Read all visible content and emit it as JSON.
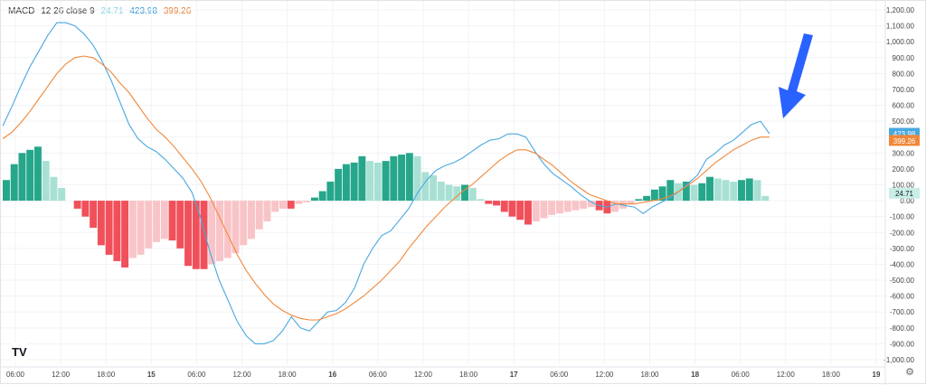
{
  "legend": {
    "label": "MACD",
    "params": "12 26 close 9",
    "hist_value": "24.71",
    "macd_value": "423.98",
    "signal_value": "399.26"
  },
  "badges": {
    "macd": "423.98",
    "signal": "399.26",
    "hist": "24.71"
  },
  "settings_icon": "gear-icon",
  "colors": {
    "macd": "#4aa8e0",
    "signal": "#f0883a",
    "hist_pos_strong": "#26a68a",
    "hist_pos_weak": "#a8e0d4",
    "hist_neg_strong": "#f0505a",
    "hist_neg_weak": "#f8c4c8",
    "arrow": "#2962ff"
  },
  "chart_data": {
    "type": "line",
    "ylim": [
      -1000,
      1200
    ],
    "y_ticks": [
      "1,200.00",
      "1,100.00",
      "1,000.00",
      "900.00",
      "800.00",
      "700.00",
      "600.00",
      "500.00",
      "400.00",
      "300.00",
      "200.00",
      "100.00",
      "0.00",
      "-100.00",
      "-200.00",
      "-300.00",
      "-400.00",
      "-500.00",
      "-600.00",
      "-700.00",
      "-800.00",
      "-900.00",
      "-1,000.00"
    ],
    "x_ticks": [
      "06:00",
      "12:00",
      "18:00",
      "15",
      "06:00",
      "12:00",
      "18:00",
      "16",
      "06:00",
      "12:00",
      "18:00",
      "17",
      "06:00",
      "12:00",
      "18:00",
      "18",
      "06:00",
      "12:00",
      "18:00",
      "19"
    ],
    "series": [
      {
        "values": [
          470,
          590,
          720,
          840,
          940,
          1040,
          1120,
          1120,
          1100,
          1050,
          980,
          880,
          760,
          620,
          480,
          390,
          340,
          310,
          260,
          200,
          140,
          50,
          -120,
          -330,
          -500,
          -630,
          -760,
          -850,
          -900,
          -900,
          -880,
          -820,
          -730,
          -800,
          -820,
          -760,
          -700,
          -690,
          -640,
          -550,
          -400,
          -300,
          -220,
          -190,
          -120,
          -50,
          50,
          130,
          190,
          220,
          240,
          270,
          310,
          350,
          380,
          390,
          420,
          420,
          400,
          310,
          230,
          170,
          130,
          90,
          40,
          0,
          -30,
          -40,
          -20,
          -30,
          -40,
          -80,
          -40,
          -10,
          20,
          60,
          110,
          160,
          260,
          300,
          350,
          380,
          430,
          480,
          500,
          420
        ]
      },
      {
        "values": [
          390,
          430,
          490,
          560,
          640,
          720,
          800,
          860,
          900,
          910,
          900,
          860,
          810,
          740,
          680,
          600,
          520,
          450,
          400,
          340,
          270,
          200,
          120,
          20,
          -100,
          -220,
          -340,
          -440,
          -520,
          -590,
          -650,
          -690,
          -720,
          -740,
          -750,
          -750,
          -730,
          -710,
          -680,
          -640,
          -600,
          -550,
          -500,
          -440,
          -380,
          -300,
          -230,
          -160,
          -100,
          -40,
          10,
          60,
          100,
          150,
          200,
          250,
          290,
          320,
          320,
          300,
          260,
          220,
          170,
          120,
          80,
          40,
          20,
          0,
          -20,
          -20,
          -20,
          -10,
          0,
          10,
          30,
          60,
          100,
          140,
          190,
          240,
          280,
          320,
          350,
          380,
          400,
          400
        ]
      }
    ],
    "histogram": [
      130,
      230,
      300,
      320,
      340,
      250,
      150,
      80,
      0,
      -50,
      -100,
      -170,
      -280,
      -340,
      -380,
      -420,
      -360,
      -340,
      -300,
      -260,
      -240,
      -250,
      -300,
      -410,
      -430,
      -430,
      -400,
      -380,
      -360,
      -330,
      -280,
      -240,
      -180,
      -130,
      -70,
      -50,
      -50,
      -20,
      -10,
      20,
      60,
      120,
      200,
      230,
      240,
      280,
      250,
      240,
      250,
      280,
      290,
      300,
      280,
      180,
      160,
      120,
      100,
      90,
      100,
      80,
      10,
      -20,
      -30,
      -70,
      -100,
      -120,
      -150,
      -130,
      -110,
      -90,
      -80,
      -70,
      -60,
      -50,
      -40,
      -60,
      -80,
      -70,
      -50,
      -20,
      10,
      30,
      70,
      90,
      130,
      110,
      120,
      100,
      110,
      150,
      140,
      130,
      120,
      130,
      140,
      130,
      30
    ]
  }
}
